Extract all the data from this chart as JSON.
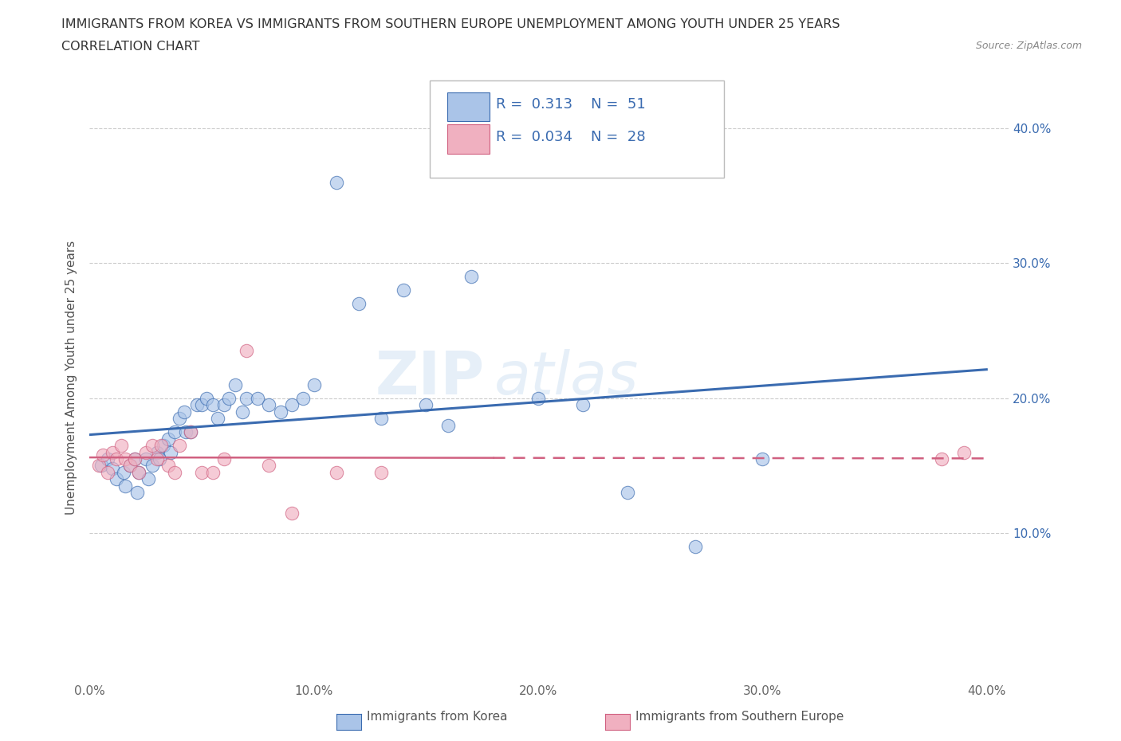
{
  "title_line1": "IMMIGRANTS FROM KOREA VS IMMIGRANTS FROM SOUTHERN EUROPE UNEMPLOYMENT AMONG YOUTH UNDER 25 YEARS",
  "title_line2": "CORRELATION CHART",
  "source_text": "Source: ZipAtlas.com",
  "ylabel": "Unemployment Among Youth under 25 years",
  "legend_label1": "Immigrants from Korea",
  "legend_label2": "Immigrants from Southern Europe",
  "R1": 0.313,
  "N1": 51,
  "R2": 0.034,
  "N2": 28,
  "xlim": [
    0.0,
    0.41
  ],
  "ylim": [
    -0.01,
    0.44
  ],
  "xticks": [
    0.0,
    0.1,
    0.2,
    0.3,
    0.4
  ],
  "yticks": [
    0.1,
    0.2,
    0.3,
    0.4
  ],
  "color_korea": "#aac4e8",
  "color_s_europe": "#f0b0c0",
  "line_color_korea": "#3a6bb0",
  "line_color_s_europe": "#d06080",
  "background_color": "#ffffff",
  "watermark_part1": "ZIP",
  "watermark_part2": "atlas",
  "korea_x": [
    0.005,
    0.008,
    0.01,
    0.012,
    0.015,
    0.016,
    0.018,
    0.02,
    0.021,
    0.022,
    0.025,
    0.026,
    0.028,
    0.03,
    0.031,
    0.033,
    0.035,
    0.036,
    0.038,
    0.04,
    0.042,
    0.043,
    0.045,
    0.048,
    0.05,
    0.052,
    0.055,
    0.057,
    0.06,
    0.062,
    0.065,
    0.068,
    0.07,
    0.075,
    0.08,
    0.085,
    0.09,
    0.095,
    0.1,
    0.11,
    0.12,
    0.13,
    0.14,
    0.15,
    0.16,
    0.17,
    0.2,
    0.22,
    0.24,
    0.27,
    0.3
  ],
  "korea_y": [
    0.15,
    0.155,
    0.148,
    0.14,
    0.145,
    0.135,
    0.15,
    0.155,
    0.13,
    0.145,
    0.155,
    0.14,
    0.15,
    0.16,
    0.155,
    0.165,
    0.17,
    0.16,
    0.175,
    0.185,
    0.19,
    0.175,
    0.175,
    0.195,
    0.195,
    0.2,
    0.195,
    0.185,
    0.195,
    0.2,
    0.21,
    0.19,
    0.2,
    0.2,
    0.195,
    0.19,
    0.195,
    0.2,
    0.21,
    0.36,
    0.27,
    0.185,
    0.28,
    0.195,
    0.18,
    0.29,
    0.2,
    0.195,
    0.13,
    0.09,
    0.155
  ],
  "s_europe_x": [
    0.004,
    0.006,
    0.008,
    0.01,
    0.012,
    0.014,
    0.016,
    0.018,
    0.02,
    0.022,
    0.025,
    0.028,
    0.03,
    0.032,
    0.035,
    0.038,
    0.04,
    0.045,
    0.05,
    0.055,
    0.06,
    0.07,
    0.08,
    0.09,
    0.11,
    0.13,
    0.38,
    0.39
  ],
  "s_europe_y": [
    0.15,
    0.158,
    0.145,
    0.16,
    0.155,
    0.165,
    0.155,
    0.15,
    0.155,
    0.145,
    0.16,
    0.165,
    0.155,
    0.165,
    0.15,
    0.145,
    0.165,
    0.175,
    0.145,
    0.145,
    0.155,
    0.235,
    0.15,
    0.115,
    0.145,
    0.145,
    0.155,
    0.16
  ]
}
